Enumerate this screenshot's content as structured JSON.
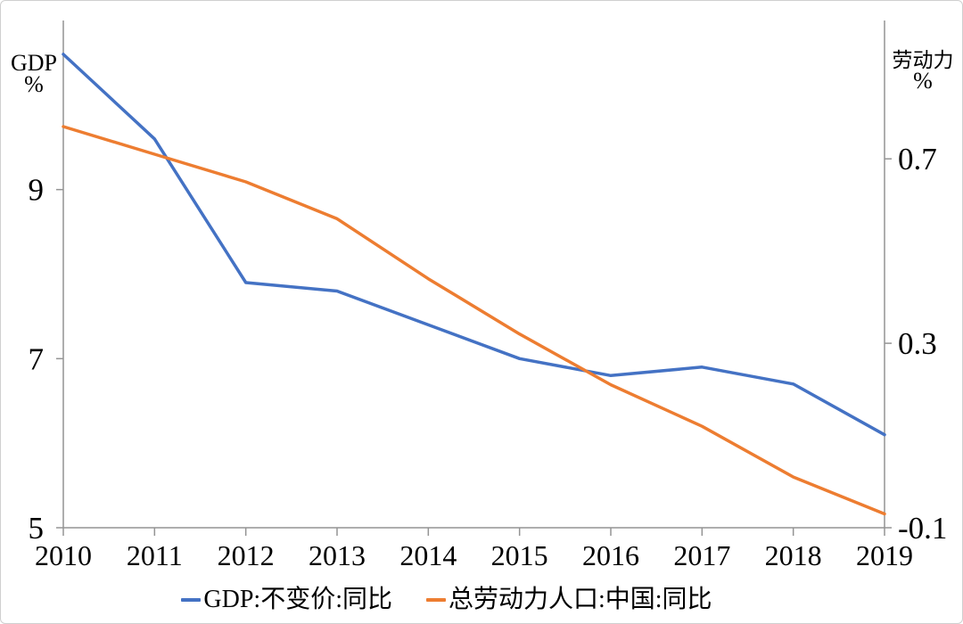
{
  "chart_data": {
    "type": "line",
    "title": "",
    "x": [
      "2010",
      "2011",
      "2012",
      "2013",
      "2014",
      "2015",
      "2016",
      "2017",
      "2018",
      "2019"
    ],
    "series": [
      {
        "name": "GDP:不变价:同比",
        "axis": "left",
        "color": "#4472C4",
        "values": [
          10.6,
          9.6,
          7.9,
          7.8,
          7.4,
          7.0,
          6.8,
          6.9,
          6.7,
          6.1
        ]
      },
      {
        "name": "总劳动力人口:中国:同比",
        "axis": "right",
        "color": "#ED7D31",
        "values": [
          0.77,
          0.71,
          0.65,
          0.57,
          0.44,
          0.32,
          0.21,
          0.12,
          0.01,
          -0.07
        ]
      }
    ],
    "left_axis": {
      "label": "GDP",
      "unit": "%",
      "min": 5,
      "max": 11.0,
      "ticks": [
        9,
        7,
        5
      ]
    },
    "right_axis": {
      "label": "劳动力",
      "unit": "%",
      "min": -0.1,
      "max": 1.0,
      "ticks": [
        0.7,
        0.3,
        -0.1
      ]
    },
    "grid": false,
    "legend_position": "bottom",
    "axis_color": "#949494",
    "text_color": "#000000"
  }
}
